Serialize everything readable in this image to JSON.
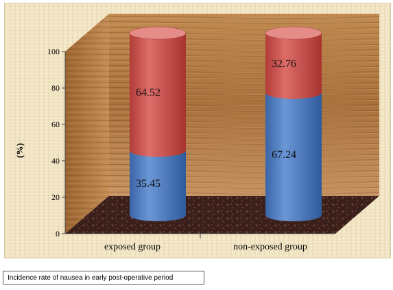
{
  "chart_data": {
    "type": "bar",
    "stacked": true,
    "style": "3d-cylinder",
    "categories": [
      "exposed group",
      "non-exposed  group"
    ],
    "series": [
      {
        "values": [
          35.45,
          67.24
        ],
        "color": "#4f81bd"
      },
      {
        "values": [
          64.52,
          32.76
        ],
        "color": "#c0504d"
      }
    ],
    "ylabel": "(%)",
    "ylim": [
      0,
      100
    ],
    "yticks": [
      "0",
      "20",
      "40",
      "60",
      "80",
      "100"
    ],
    "grid": false,
    "legend": "none"
  },
  "caption": "Incidence rate of nausea in early post-operative period"
}
